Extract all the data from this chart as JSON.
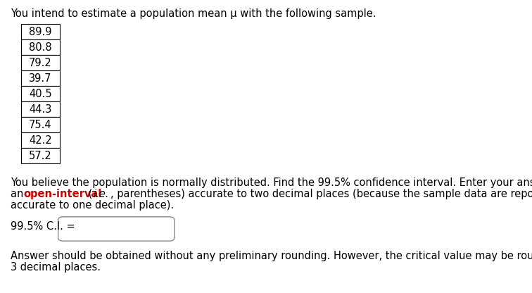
{
  "title_text": "You intend to estimate a population mean μ with the following sample.",
  "sample_values": [
    "89.9",
    "80.8",
    "79.2",
    "39.7",
    "40.5",
    "44.3",
    "75.4",
    "42.2",
    "57.2"
  ],
  "ci_label": "99.5% C.I. =",
  "footer_line1": "Answer should be obtained without any preliminary rounding. However, the critical value may be rounded to",
  "footer_line2": "3 decimal places.",
  "bg_color": "#ffffff",
  "font_size": 10.5
}
